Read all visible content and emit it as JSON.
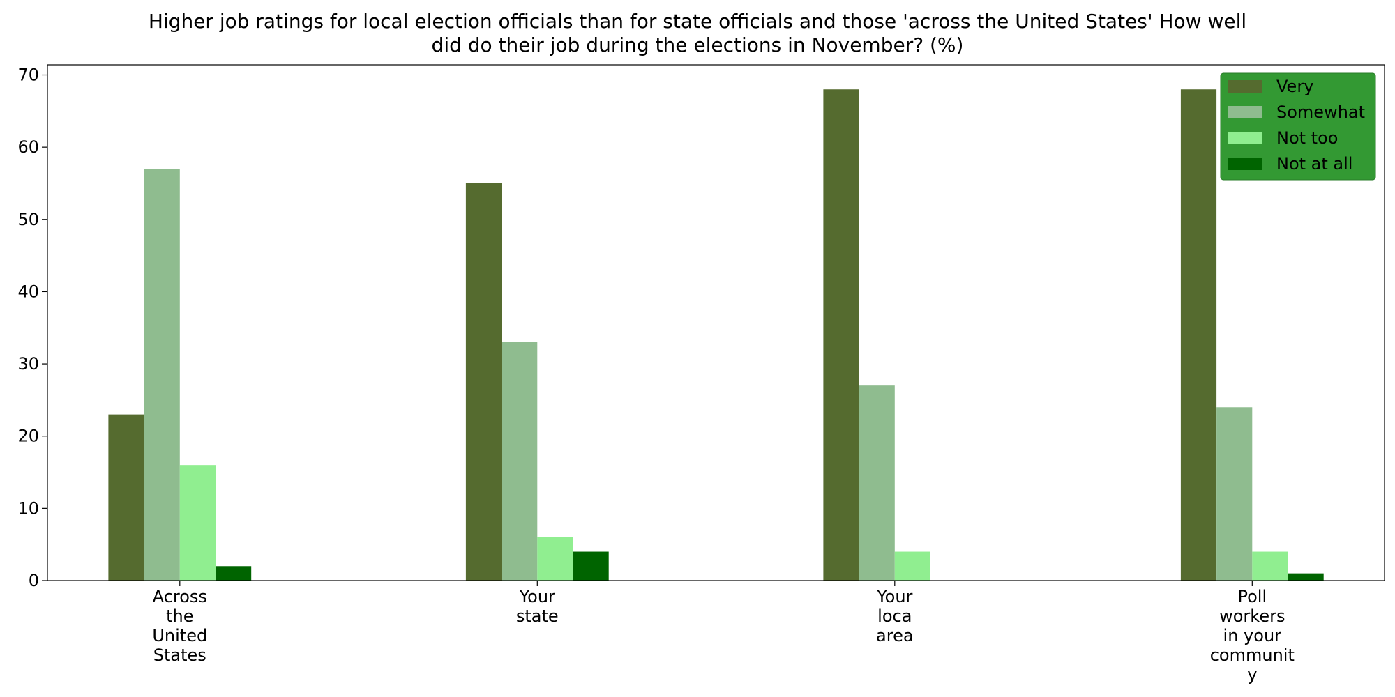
{
  "chart_data": {
    "type": "bar",
    "title_lines": [
      "Higher job ratings for local election officials than for state officials and those 'across the United States' How well",
      "did do their job during the elections in November? (%)"
    ],
    "categories": [
      [
        "Across",
        "the",
        "United",
        "States"
      ],
      [
        "Your",
        "state"
      ],
      [
        "Your",
        "loca",
        "area"
      ],
      [
        "Poll",
        "workers",
        "in your",
        "communit",
        "y"
      ]
    ],
    "series": [
      {
        "name": "Very",
        "color": "#556B2F",
        "values": [
          23,
          55,
          68,
          68
        ]
      },
      {
        "name": "Somewhat",
        "color": "#8FBC8F",
        "values": [
          57,
          33,
          27,
          24
        ]
      },
      {
        "name": "Not too",
        "color": "#90EE90",
        "values": [
          16,
          6,
          4,
          4
        ]
      },
      {
        "name": "Not at all",
        "color": "#006400",
        "values": [
          2,
          4,
          0,
          1
        ]
      }
    ],
    "ylim": [
      0,
      71.4
    ],
    "yticks": [
      0,
      10,
      20,
      30,
      40,
      50,
      60,
      70
    ],
    "legend": {
      "position": "top-right",
      "background": "#339933"
    },
    "grid": false
  }
}
